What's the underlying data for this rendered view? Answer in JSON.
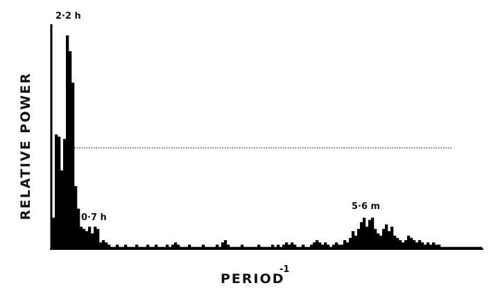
{
  "chart_data": {
    "type": "bar",
    "annotations": [
      "2·2 h",
      "0·7 h",
      "5·6 m"
    ],
    "y_label": "RELATIVE POWER",
    "x_label": "PERIOD",
    "x_label_exponent": "-1",
    "color": "#000000",
    "threshold": 45,
    "xlim": [
      0,
      156
    ],
    "ylim": [
      0,
      100
    ],
    "x": [
      1,
      2,
      3,
      4,
      5,
      6,
      7,
      8,
      9,
      10,
      11,
      12,
      13,
      14,
      15,
      16,
      17,
      18,
      19,
      20,
      21,
      22,
      23,
      24,
      25,
      26,
      27,
      28,
      29,
      30,
      31,
      32,
      33,
      34,
      35,
      36,
      37,
      38,
      39,
      40,
      41,
      42,
      43,
      44,
      45,
      46,
      47,
      48,
      49,
      50,
      51,
      52,
      53,
      54,
      55,
      56,
      57,
      58,
      59,
      60,
      61,
      62,
      63,
      64,
      65,
      66,
      67,
      68,
      69,
      70,
      71,
      72,
      73,
      74,
      75,
      76,
      77,
      78,
      79,
      80,
      81,
      82,
      83,
      84,
      85,
      86,
      87,
      88,
      89,
      90,
      91,
      92,
      93,
      94,
      95,
      96,
      97,
      98,
      99,
      100,
      101,
      102,
      103,
      104,
      105,
      106,
      107,
      108,
      109,
      110,
      111,
      112,
      113,
      114,
      115,
      116,
      117,
      118,
      119,
      120,
      121,
      122,
      123,
      124,
      125,
      126,
      127,
      128,
      129,
      130,
      131,
      132,
      133,
      134,
      135,
      136,
      137,
      138,
      139,
      140,
      141,
      142,
      143,
      144,
      145,
      146,
      147,
      148,
      149,
      150,
      151,
      152,
      153,
      154,
      155
    ],
    "values": [
      14,
      51,
      50,
      35,
      49,
      95,
      88,
      74,
      28,
      18,
      10,
      9,
      8,
      10,
      7,
      10,
      9,
      3,
      4,
      3,
      2,
      1,
      1,
      2,
      1,
      1,
      2,
      1,
      1,
      1,
      2,
      1,
      1,
      1,
      2,
      1,
      1,
      2,
      1,
      1,
      1,
      2,
      1,
      2,
      3,
      2,
      1,
      1,
      1,
      2,
      1,
      1,
      1,
      1,
      2,
      1,
      1,
      1,
      1,
      2,
      1,
      3,
      4,
      2,
      1,
      1,
      1,
      1,
      2,
      1,
      1,
      1,
      1,
      1,
      2,
      1,
      1,
      1,
      1,
      2,
      1,
      2,
      1,
      2,
      3,
      2,
      3,
      2,
      1,
      1,
      2,
      1,
      1,
      2,
      3,
      4,
      3,
      2,
      3,
      2,
      1,
      2,
      3,
      2,
      2,
      4,
      3,
      5,
      8,
      6,
      9,
      12,
      14,
      10,
      13,
      14,
      9,
      7,
      6,
      9,
      11,
      8,
      10,
      6,
      5,
      4,
      3,
      4,
      6,
      5,
      4,
      3,
      4,
      3,
      2,
      3,
      2,
      3,
      2,
      2,
      1,
      1,
      1,
      1,
      1,
      1,
      1,
      1,
      1,
      1,
      1,
      1,
      1,
      1,
      1
    ]
  }
}
